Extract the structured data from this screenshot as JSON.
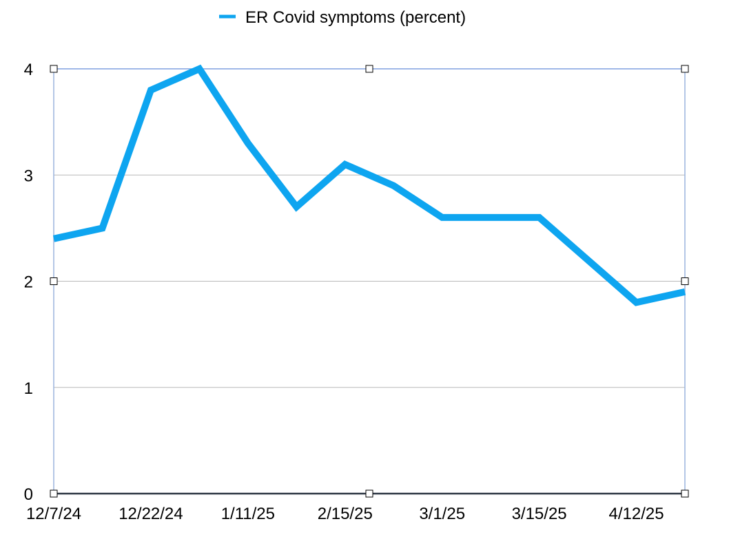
{
  "chart_data": {
    "type": "line",
    "title": "",
    "xlabel": "",
    "ylabel": "",
    "ylim": [
      0,
      4
    ],
    "y_ticks": [
      "0",
      "1",
      "2",
      "3",
      "4"
    ],
    "x_tick_labels": [
      "12/7/24",
      "12/22/24",
      "1/11/25",
      "2/15/25",
      "3/1/25",
      "3/15/25",
      "4/12/25"
    ],
    "grid": "horizontal",
    "legend_position": "top-center",
    "series": [
      {
        "name": "ER Covid symptoms (percent)",
        "color": "#0ea5f0",
        "values": [
          2.4,
          2.5,
          3.8,
          4.0,
          3.3,
          2.7,
          3.1,
          2.9,
          2.6,
          2.6,
          2.6,
          2.2,
          1.8,
          1.9
        ]
      }
    ]
  }
}
